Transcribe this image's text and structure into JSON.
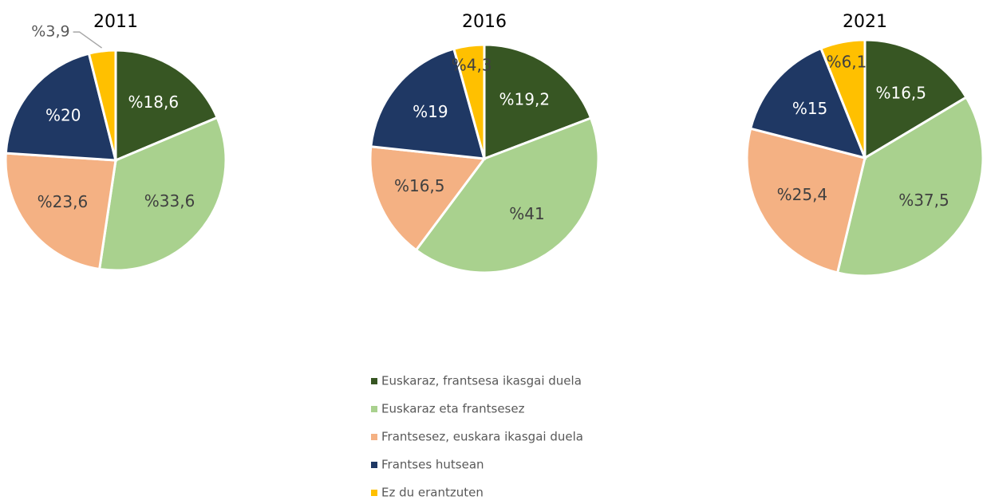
{
  "chart_data": [
    {
      "type": "pie",
      "title": "2011",
      "categories": [
        "Euskaraz, frantsesa ikasgai duela",
        "Euskaraz eta frantsesez",
        "Frantsesez, euskara ikasgai duela",
        "Frantses hutsean",
        "Ez du erantzuten"
      ],
      "colors": [
        "#375623",
        "#a9d18e",
        "#f4b183",
        "#1f3864",
        "#ffc000"
      ],
      "values": [
        18.6,
        33.6,
        23.6,
        20,
        3.9
      ],
      "value_labels": [
        "%18,6",
        "%33,6",
        "%23,6",
        "%20",
        "%3,9"
      ]
    },
    {
      "type": "pie",
      "title": "2016",
      "values": [
        19.2,
        41,
        16.5,
        19,
        4.3
      ],
      "value_labels": [
        "%19,2",
        "%41",
        "%16,5",
        "%19",
        "%4,3"
      ]
    },
    {
      "type": "pie",
      "title": "2021",
      "values": [
        16.5,
        37.5,
        25.4,
        15,
        6.1
      ],
      "value_labels": [
        "%16,5",
        "%37,5",
        "%25,4",
        "%15",
        "%6,1"
      ]
    }
  ]
}
